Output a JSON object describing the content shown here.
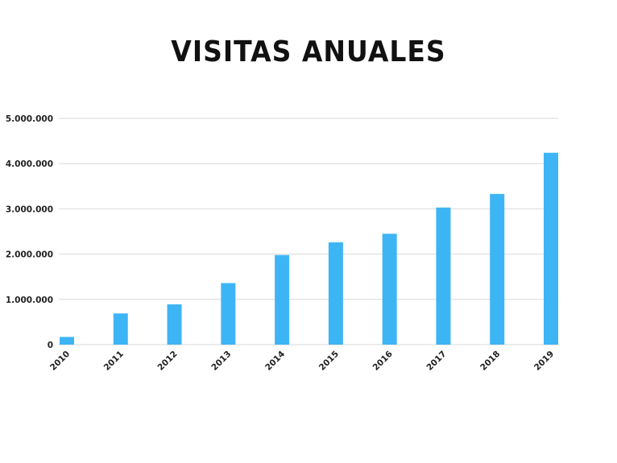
{
  "chart_data": {
    "type": "bar",
    "title": "VISITAS ANUALES",
    "xlabel": "",
    "ylabel": "",
    "categories": [
      "2010",
      "2011",
      "2012",
      "2013",
      "2014",
      "2015",
      "2016",
      "2017",
      "2018",
      "2019"
    ],
    "values": [
      170000,
      690000,
      890000,
      1360000,
      1980000,
      2260000,
      2450000,
      3030000,
      3330000,
      4240000
    ],
    "ylim": [
      0,
      5000000
    ],
    "yticks": [
      0,
      1000000,
      2000000,
      3000000,
      4000000,
      5000000
    ],
    "ytick_labels": [
      "0",
      "1.000.000",
      "2.000.000",
      "3.000.000",
      "4.000.000",
      "5.000.000"
    ],
    "grid": true,
    "bar_color": "#3db5f5",
    "grid_color": "#d9d9d9"
  }
}
